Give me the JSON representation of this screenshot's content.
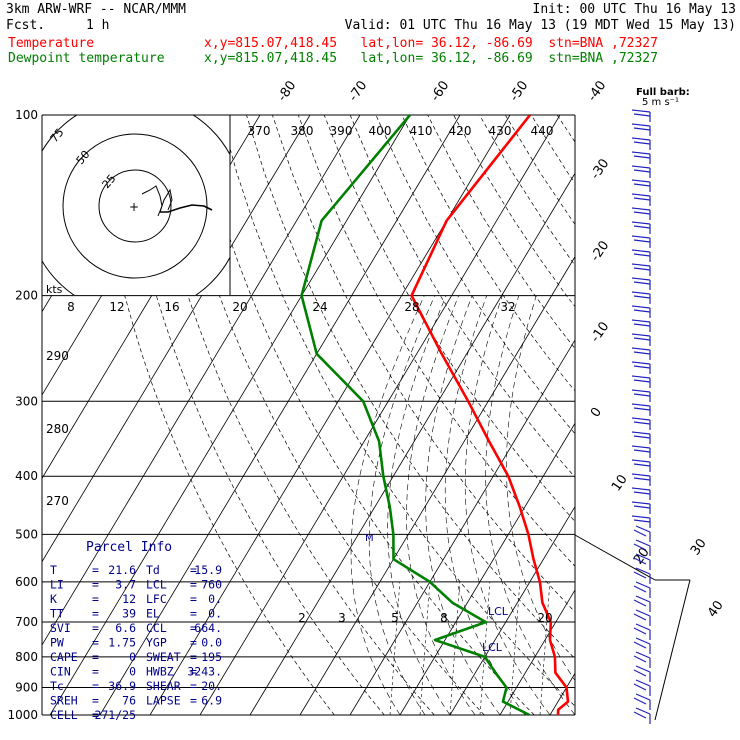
{
  "header": {
    "model": "3km ARW-WRF -- NCAR/MMM",
    "fcst_label": "Fcst.",
    "fcst_value": "1 h",
    "init": "Init: 00 UTC Thu 16 May 13",
    "valid": "Valid: 01 UTC Thu 16 May 13 (19 MDT Wed 15 May 13)",
    "temp_label": "Temperature",
    "temp_info": "x,y=815.07,418.45   lat,lon= 36.12, -86.69  stn=BNA ,72327",
    "dew_label": "Dewpoint temperature",
    "dew_info": "x,y=815.07,418.45   lat,lon= 36.12, -86.69  stn=BNA ,72327"
  },
  "colors": {
    "temperature": "#ff0000",
    "dewpoint": "#008000",
    "parcel_info": "#00008b",
    "wind_barbs": "#2020c0"
  },
  "barb_legend": {
    "line1": "Full barb:",
    "line2": "5 m s⁻¹"
  },
  "hodograph": {
    "units": "kts",
    "ring_labels": [
      "75",
      "50",
      "25"
    ]
  },
  "parcel_info": {
    "title": "Parcel Info",
    "rows": [
      {
        "k1": "T",
        "v1": "21.6",
        "k2": "Td",
        "v2": "15.9"
      },
      {
        "k1": "LI",
        "v1": "3.7",
        "k2": "LCL",
        "v2": "760"
      },
      {
        "k1": "K",
        "v1": "12",
        "k2": "LFC",
        "v2": "0."
      },
      {
        "k1": "TT",
        "v1": "39",
        "k2": "EL",
        "v2": "0."
      },
      {
        "k1": "SVI",
        "v1": "6.6",
        "k2": "CCL",
        "v2": "664."
      },
      {
        "k1": "PW",
        "v1": "1.75",
        "k2": "YGP",
        "v2": "0.0"
      },
      {
        "k1": "CAPE",
        "v1": "0",
        "k2": "SWEAT",
        "v2": "195"
      },
      {
        "k1": "CIN",
        "v1": "0",
        "k2": "HWBZ",
        "v2": "3243."
      },
      {
        "k1": "Tc",
        "v1": "36.9",
        "k2": "SHEAR",
        "v2": "20."
      },
      {
        "k1": "SREH",
        "v1": "76",
        "k2": "LAPSE",
        "v2": "6.9"
      },
      {
        "k1": "CELL",
        "v1": "271/25",
        "k2": "",
        "v2": ""
      }
    ]
  },
  "markers": {
    "lcl1": "LCL",
    "lcl2": "LCL",
    "m": "M"
  },
  "chart_data": {
    "type": "line",
    "y_axis": "pressure (hPa), log scale",
    "ylim": [
      1000,
      100
    ],
    "pressure_levels": [
      100,
      200,
      300,
      400,
      500,
      600,
      700,
      800,
      900,
      1000
    ],
    "isotherm_labels": [
      "-80",
      "-70",
      "-60",
      "-50",
      "-40",
      "-30",
      "-20",
      "-10",
      "0",
      "10",
      "20",
      "30",
      "40"
    ],
    "theta_top_labels": [
      "370",
      "380",
      "390",
      "400",
      "410",
      "420",
      "430",
      "440"
    ],
    "theta_left_labels": [
      "290",
      "280",
      "270"
    ],
    "mixing_ratio_labels": [
      "2",
      "3",
      "5",
      "8",
      "20"
    ],
    "hodograph_speed_labels": [
      "8",
      "12",
      "16",
      "20",
      "24",
      "28",
      "32"
    ],
    "series": [
      {
        "name": "Temperature",
        "color": "#ff0000",
        "points": [
          [
            100,
            -56
          ],
          [
            150,
            -60
          ],
          [
            200,
            -58
          ],
          [
            250,
            -45
          ],
          [
            300,
            -34
          ],
          [
            350,
            -25
          ],
          [
            400,
            -17
          ],
          [
            450,
            -11
          ],
          [
            500,
            -6
          ],
          [
            550,
            -2
          ],
          [
            600,
            2
          ],
          [
            650,
            5
          ],
          [
            700,
            9
          ],
          [
            750,
            11
          ],
          [
            800,
            14
          ],
          [
            850,
            16
          ],
          [
            900,
            20
          ],
          [
            950,
            22
          ],
          [
            980,
            21
          ],
          [
            1000,
            21.6
          ]
        ]
      },
      {
        "name": "Dewpoint temperature",
        "color": "#008000",
        "points": [
          [
            100,
            -80
          ],
          [
            150,
            -85
          ],
          [
            200,
            -80
          ],
          [
            250,
            -70
          ],
          [
            300,
            -55
          ],
          [
            350,
            -47
          ],
          [
            400,
            -42
          ],
          [
            450,
            -37
          ],
          [
            500,
            -33
          ],
          [
            550,
            -30
          ],
          [
            600,
            -20
          ],
          [
            650,
            -13
          ],
          [
            700,
            -4
          ],
          [
            750,
            -12
          ],
          [
            800,
            0
          ],
          [
            850,
            4
          ],
          [
            900,
            8
          ],
          [
            950,
            9
          ],
          [
            1000,
            15.9
          ]
        ]
      }
    ]
  }
}
